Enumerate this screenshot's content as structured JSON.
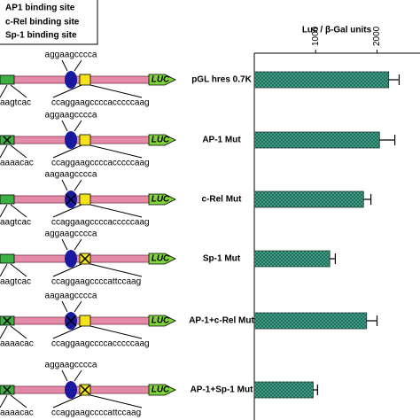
{
  "chart_data": {
    "type": "hbar",
    "xlabel": "Luc / β-Gal units",
    "categories": [
      "pGL hres 0.7K",
      "AP-1 Mut",
      "c-Rel Mut",
      "Sp-1 Mut",
      "AP-1+c-Rel Mut",
      "AP-1+Sp-1 Mut"
    ],
    "values": [
      2190,
      2040,
      1780,
      1230,
      1830,
      960
    ],
    "errors": [
      170,
      250,
      120,
      90,
      170,
      70
    ],
    "color": "#3fa88c",
    "xlim": [
      0,
      2700
    ],
    "xticks": [
      1000,
      2000
    ]
  },
  "diagram": {
    "legend": [
      "AP1 binding site",
      "c-Rel binding site",
      "Sp-1 binding site"
    ],
    "luc": "LUC",
    "rows": [
      {
        "top": "aggaagcccca",
        "left": "aagtcac",
        "right": "ccaggaagccccacccccaag"
      },
      {
        "top": "aggaagcccca",
        "left": "aaaacac",
        "right": "ccaggaagccccacccccaag"
      },
      {
        "top": "aagaagcccca",
        "left": "aagtcac",
        "right": "ccaggaagccccacccccaag"
      },
      {
        "top": "aggaagcccca",
        "left": "aagtcac",
        "right": "ccaggaagccccattccaag"
      },
      {
        "top": "aagaagcccca",
        "left": "aaaacac",
        "right": "ccaggaagccccacccccaag"
      },
      {
        "top": "aggaagcccca",
        "left": "aaaacac",
        "right": "ccaggaagccccattccaag"
      }
    ]
  }
}
